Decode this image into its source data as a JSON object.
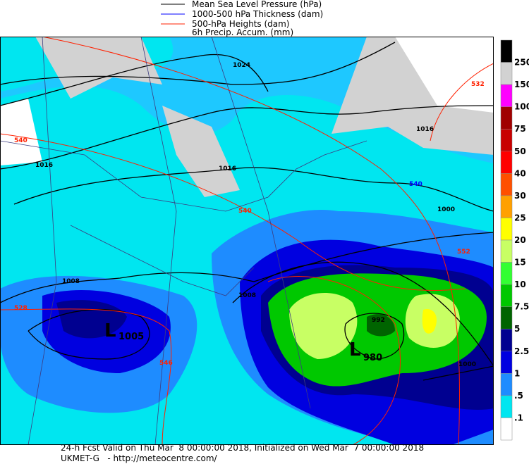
{
  "legend": [
    "Mean Sea Level Pressure (hPa)",
    "1000-500 hPa Thickness (dam)",
    "500-hPa Heights (dam)",
    "6h Precip. Accum. (mm)"
  ],
  "colorbar": {
    "labels": [
      "250",
      "150",
      "100",
      "75",
      "50",
      "40",
      "30",
      "25",
      "20",
      "15",
      "10",
      "7.5",
      "5",
      "2.5",
      "1",
      ".5",
      ".1"
    ]
  },
  "map_labels": {
    "pressure": [
      "1024",
      "1016",
      "1016",
      "1016",
      "1008",
      "1008",
      "1000",
      "1000",
      "992"
    ],
    "thickness": [
      "540"
    ],
    "heights": [
      "540",
      "540",
      "528",
      "552",
      "532",
      "546"
    ],
    "lows": [
      {
        "symbol": "L",
        "value": "1005"
      },
      {
        "symbol": "L",
        "value": "980"
      }
    ]
  },
  "footer": [
    "24-h Fcst Valid on Thu Mar  8 00:00:00 2018, Initialized on Wed Mar  7 00:00:00 2018",
    "UKMET-G   - http://meteocentre.com/"
  ]
}
